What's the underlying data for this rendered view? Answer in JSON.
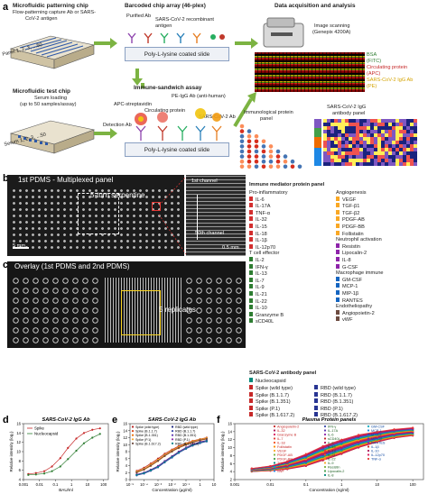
{
  "panel_a": {
    "label": "a",
    "chip1_title": "Microfluidic patterning chip",
    "chip1_sub1": "Flow-patterning capture Ab or SARS-",
    "chip1_sub2": "CoV-2 antigen",
    "chip1_panel": "Panel 1, 2, 3, ...50",
    "chip2_title": "Microfluidic test chip",
    "chip2_sub1": "Serum loading",
    "chip2_sub2": "(up to 50 samples/assay)",
    "chip2_serum": "Serum 1, 2, 3, ...50",
    "array_title": "Barcoded chip array (46-plex)",
    "purified_ab": "Purified Ab",
    "recomb_ag": "SARS-CoV-2 recombinant antigen",
    "slide1": "Poly-L-lysine coated slide",
    "sandwich_title": "Immune-sandwich assay",
    "pe_igg": "PE-IgG Ab (anti-human)",
    "apc_strep": "APC-streptavidin",
    "circ_protein": "Circulating protein",
    "sars_ab": "SARS-CoV-2 Ab",
    "detection_ab": "Detection Ab",
    "slide2": "Poly-L-lysine coated slide",
    "acq_title": "Data acquisition and analysis",
    "scan1": "Image scanning",
    "scan2": "(Genepix 4200A)",
    "leg_bsa": "BSA",
    "leg_fitc": "(FITC)",
    "leg_circ": "Circulating protein",
    "leg_apc": "(APC)",
    "leg_sars": "SARS-CoV-2 IgG Ab",
    "leg_pe": "(PE)",
    "immuno_panel1": "Immunological protein",
    "immuno_panel2": "panel",
    "igg_panel1": "SARS-CoV-2 IgG",
    "igg_panel2": "antibody panel"
  },
  "panel_b": {
    "label": "b",
    "title": "1st PDMS - Multiplexed panel",
    "serpentine": "5-turn serpentine",
    "ch1": "1st channel",
    "ch50": "50th channel",
    "scale1": "5 mm",
    "scale2": "0.5 mm"
  },
  "panel_c": {
    "label": "c",
    "title": "Overlay (1st PDMS and 2nd PDMS)",
    "replicates": "5 replicates"
  },
  "right_panel": {
    "title": "Immune mediator protein panel",
    "col1": [
      {
        "h": "Pro-inflammatory",
        "items": [
          "IL-6",
          "IL-17A",
          "TNF-α",
          "IL-32",
          "IL-15",
          "IL-18",
          "IL-1β",
          "IL-12p70"
        ]
      },
      {
        "h": "T cell effector",
        "items": [
          "IL-2",
          "IFN-γ",
          "IL-13",
          "IL-7",
          "IL-9",
          "IL-21",
          "IL-22",
          "IL-10",
          "Granzyme B",
          "sCD40L"
        ]
      }
    ],
    "col2": [
      {
        "h": "Angiogenesis",
        "items": [
          "VEGF",
          "TGF-β1",
          "TGF-β2",
          "PDGF-AB",
          "PDGF-BB",
          "Follistatin"
        ]
      },
      {
        "h": "Neutrophil activation",
        "items": [
          "Resistin",
          "Lipocalin-2",
          "IL-8",
          "G-CSF"
        ]
      },
      {
        "h": "Macrophage immune",
        "items": [
          "GM-CSF",
          "MCP-1",
          "MIP-1β",
          "RANTES"
        ]
      },
      {
        "h": "Endotheliopathy",
        "items": [
          "Angiopoietin-2",
          "vWF"
        ]
      }
    ],
    "sars_title": "SARS-CoV-2 antibody panel",
    "nucleo": "Nucleocapsid",
    "sars_col1": [
      "Spike (wild type)",
      "Spike (B.1.1.7)",
      "Spike (B.1.351)",
      "Spike (P.1)",
      "Spike (B.1.617.2)"
    ],
    "sars_col2": [
      "RBD (wild type)",
      "RBD (B.1.1.7)",
      "RBD (B.1.351)",
      "RBD (P.1)",
      "RBD (B.1.617.2)"
    ],
    "colors": {
      "pro": "#d32f2f",
      "tcell": "#2e7d32",
      "angio": "#f9a825",
      "neut": "#8e24aa",
      "macro": "#1565c0",
      "endo": "#6d4c41",
      "nucleo": "#00897b",
      "spike": "#c62828",
      "rbd": "#283593"
    }
  },
  "panel_d": {
    "label": "d",
    "title": "SARS-CoV-2 IgG Ab",
    "ylabel": "Relative intensity (log₂)",
    "xlabel": "BAU/ml",
    "legend": [
      "Spike",
      "Nucleocapsid"
    ],
    "xticks": [
      "0.001",
      "0.01",
      "0.1",
      "1",
      "10",
      "100"
    ],
    "yticks": [
      "4",
      "6",
      "8",
      "10",
      "12",
      "14",
      "16"
    ]
  },
  "panel_e": {
    "label": "e",
    "title": "SARS-CoV-2 IgG Ab",
    "ylabel": "Relative intensity (log₂)",
    "xlabel": "Concentration (μg/ml)",
    "legend_c1": [
      "Spike (wild type)",
      "Spike (B.1.1.7)",
      "Spike (B.1.351)",
      "Spike (P.1)",
      "Spike (B.1.617.2)"
    ],
    "legend_c2": [
      "RBD (wild type)",
      "RBD (B.1.1.7)",
      "RBD (B.1.351)",
      "RBD (P.1)",
      "RBD (B.1.617.2)"
    ],
    "xticks": [
      "10⁻⁵",
      "10⁻⁴",
      "10⁻³",
      "10⁻²",
      "10⁻¹",
      "1",
      "10"
    ],
    "yticks": [
      "0",
      "2",
      "4",
      "6",
      "8",
      "10",
      "12",
      "14",
      "16"
    ]
  },
  "panel_f": {
    "label": "f",
    "title": "Plasma Protein panels",
    "ylabel": "Relative intensity (log₂)",
    "xlabel": "Concentration (ng/ml)",
    "legend_c1": [
      "Angiopoietin-2",
      "IL-32",
      "Granzyme B",
      "IL-7",
      "IL-18",
      "Follistatin",
      "VEGF",
      "PDGF-AB",
      "PDGF-BB",
      "TGF-β1",
      "TGF-β2",
      "vWF"
    ],
    "legend_c2": [
      "IFN-γ",
      "IL-17A",
      "IL-6",
      "sCD40L",
      "IL-2",
      "IL-15",
      "IL-13",
      "IL-21",
      "IL-22",
      "IL-9",
      "Resistin",
      "Lipocalin-2",
      "IL-8"
    ],
    "legend_c3": [
      "GM-CSF",
      "MCP-1",
      "M-CSF",
      "MIP-1β",
      "RANTES",
      "IL-1β",
      "IL-10",
      "IL-12p70",
      "TNF-α"
    ],
    "xticks": [
      "0.001",
      "0.01",
      "0.1",
      "1",
      "10",
      "100"
    ],
    "yticks": [
      "2",
      "4",
      "6",
      "8",
      "10",
      "12",
      "14",
      "16"
    ]
  },
  "chart_data": [
    {
      "type": "line",
      "title": "SARS-CoV-2 IgG Ab",
      "xlabel": "BAU/ml",
      "ylabel": "Relative intensity (log₂)",
      "xscale": "log",
      "xlim": [
        0.001,
        200
      ],
      "ylim": [
        4,
        16
      ],
      "series": [
        {
          "name": "Spike",
          "x": [
            0.002,
            0.006,
            0.02,
            0.06,
            0.2,
            0.6,
            2,
            6,
            20,
            60
          ],
          "y": [
            5.2,
            5.4,
            5.8,
            6.8,
            8.6,
            10.8,
            12.8,
            14.0,
            14.7,
            15.0
          ]
        },
        {
          "name": "Nucleocapsid",
          "x": [
            0.002,
            0.006,
            0.02,
            0.06,
            0.2,
            0.6,
            2,
            6,
            20,
            60
          ],
          "y": [
            5.0,
            5.1,
            5.3,
            5.8,
            6.8,
            8.4,
            10.2,
            11.8,
            13.0,
            13.8
          ]
        }
      ]
    },
    {
      "type": "line",
      "title": "SARS-CoV-2 IgG Ab",
      "xlabel": "Concentration (μg/ml)",
      "ylabel": "Relative intensity (log₂)",
      "xscale": "log",
      "xlim": [
        1e-05,
        10
      ],
      "ylim": [
        0,
        16
      ],
      "series": [
        {
          "name": "Spike (wild type)",
          "x": [
            3e-05,
            0.0001,
            0.0003,
            0.001,
            0.003,
            0.01,
            0.03,
            0.1,
            0.3,
            1,
            3
          ],
          "y": [
            2.5,
            3.4,
            4.6,
            6.0,
            7.4,
            8.6,
            9.6,
            10.4,
            11.1,
            11.6,
            12.0
          ]
        },
        {
          "name": "Spike (B.1.1.7)",
          "x": [
            3e-05,
            0.0001,
            0.0003,
            0.001,
            0.003,
            0.01,
            0.03,
            0.1,
            0.3,
            1,
            3
          ],
          "y": [
            2.2,
            3.0,
            4.2,
            5.6,
            7.0,
            8.3,
            9.3,
            10.2,
            10.9,
            11.4,
            11.8
          ]
        },
        {
          "name": "Spike (B.1.351)",
          "x": [
            3e-05,
            0.0001,
            0.0003,
            0.001,
            0.003,
            0.01,
            0.03,
            0.1,
            0.3,
            1,
            3
          ],
          "y": [
            2.0,
            2.8,
            3.9,
            5.3,
            6.7,
            8.0,
            9.0,
            9.9,
            10.6,
            11.2,
            11.6
          ]
        },
        {
          "name": "Spike (P.1)",
          "x": [
            3e-05,
            0.0001,
            0.0003,
            0.001,
            0.003,
            0.01,
            0.03,
            0.1,
            0.3,
            1,
            3
          ],
          "y": [
            2.3,
            3.1,
            4.3,
            5.7,
            7.1,
            8.4,
            9.4,
            10.3,
            11.0,
            11.5,
            11.9
          ]
        },
        {
          "name": "Spike (B.1.617.2)",
          "x": [
            3e-05,
            0.0001,
            0.0003,
            0.001,
            0.003,
            0.01,
            0.03,
            0.1,
            0.3,
            1,
            3
          ],
          "y": [
            2.1,
            2.9,
            4.0,
            5.4,
            6.8,
            8.1,
            9.1,
            10.0,
            10.7,
            11.3,
            11.7
          ]
        },
        {
          "name": "RBD (wild type)",
          "x": [
            3e-05,
            0.0001,
            0.0003,
            0.001,
            0.003,
            0.01,
            0.03,
            0.1,
            0.3,
            1,
            3
          ],
          "y": [
            1.5,
            2.0,
            2.8,
            3.9,
            5.3,
            6.7,
            8.0,
            9.2,
            10.1,
            10.8,
            11.2
          ]
        },
        {
          "name": "RBD (B.1.1.7)",
          "x": [
            3e-05,
            0.0001,
            0.0003,
            0.001,
            0.003,
            0.01,
            0.03,
            0.1,
            0.3,
            1,
            3
          ],
          "y": [
            1.3,
            1.8,
            2.6,
            3.7,
            5.1,
            6.5,
            7.8,
            9.0,
            9.9,
            10.6,
            11.0
          ]
        },
        {
          "name": "RBD (B.1.351)",
          "x": [
            3e-05,
            0.0001,
            0.0003,
            0.001,
            0.003,
            0.01,
            0.03,
            0.1,
            0.3,
            1,
            3
          ],
          "y": [
            1.2,
            1.7,
            2.5,
            3.5,
            4.9,
            6.3,
            7.6,
            8.8,
            9.7,
            10.4,
            10.9
          ]
        },
        {
          "name": "RBD (P.1)",
          "x": [
            3e-05,
            0.0001,
            0.0003,
            0.001,
            0.003,
            0.01,
            0.03,
            0.1,
            0.3,
            1,
            3
          ],
          "y": [
            1.4,
            1.9,
            2.7,
            3.8,
            5.2,
            6.6,
            7.9,
            9.1,
            10.0,
            10.7,
            11.1
          ]
        },
        {
          "name": "RBD (B.1.617.2)",
          "x": [
            3e-05,
            0.0001,
            0.0003,
            0.001,
            0.003,
            0.01,
            0.03,
            0.1,
            0.3,
            1,
            3
          ],
          "y": [
            1.3,
            1.8,
            2.6,
            3.6,
            5.0,
            6.4,
            7.7,
            8.9,
            9.8,
            10.5,
            11.0
          ]
        }
      ]
    },
    {
      "type": "line",
      "title": "Plasma Protein panels",
      "xlabel": "Concentration (ng/ml)",
      "ylabel": "Relative intensity (log₂)",
      "xscale": "log",
      "xlim": [
        0.001,
        200
      ],
      "ylim": [
        2,
        16
      ],
      "series_note_names": [
        "Angiopoietin-2",
        "IL-32",
        "Granzyme B",
        "IL-7",
        "IL-18",
        "Follistatin",
        "VEGF",
        "PDGF-AB",
        "PDGF-BB",
        "TGF-β1",
        "TGF-β2",
        "vWF",
        "IFN-γ",
        "IL-17A",
        "IL-6",
        "sCD40L",
        "IL-2",
        "IL-15",
        "IL-13",
        "IL-21",
        "IL-22",
        "IL-9",
        "Resistin",
        "Lipocalin-2",
        "IL-8",
        "GM-CSF",
        "MCP-1",
        "M-CSF",
        "MIP-1β",
        "RANTES",
        "IL-1β",
        "IL-10",
        "IL-12p70",
        "TNF-α"
      ],
      "x": [
        0.003,
        0.01,
        0.03,
        0.1,
        0.3,
        1,
        3,
        10,
        30,
        100
      ],
      "y_low": [
        4.0,
        4.2,
        4.6,
        5.4,
        6.8,
        8.4,
        10.0,
        11.4,
        12.4,
        13.0
      ],
      "y_high": [
        4.8,
        5.4,
        6.6,
        8.4,
        10.4,
        12.0,
        13.2,
        14.0,
        14.6,
        15.0
      ]
    }
  ]
}
